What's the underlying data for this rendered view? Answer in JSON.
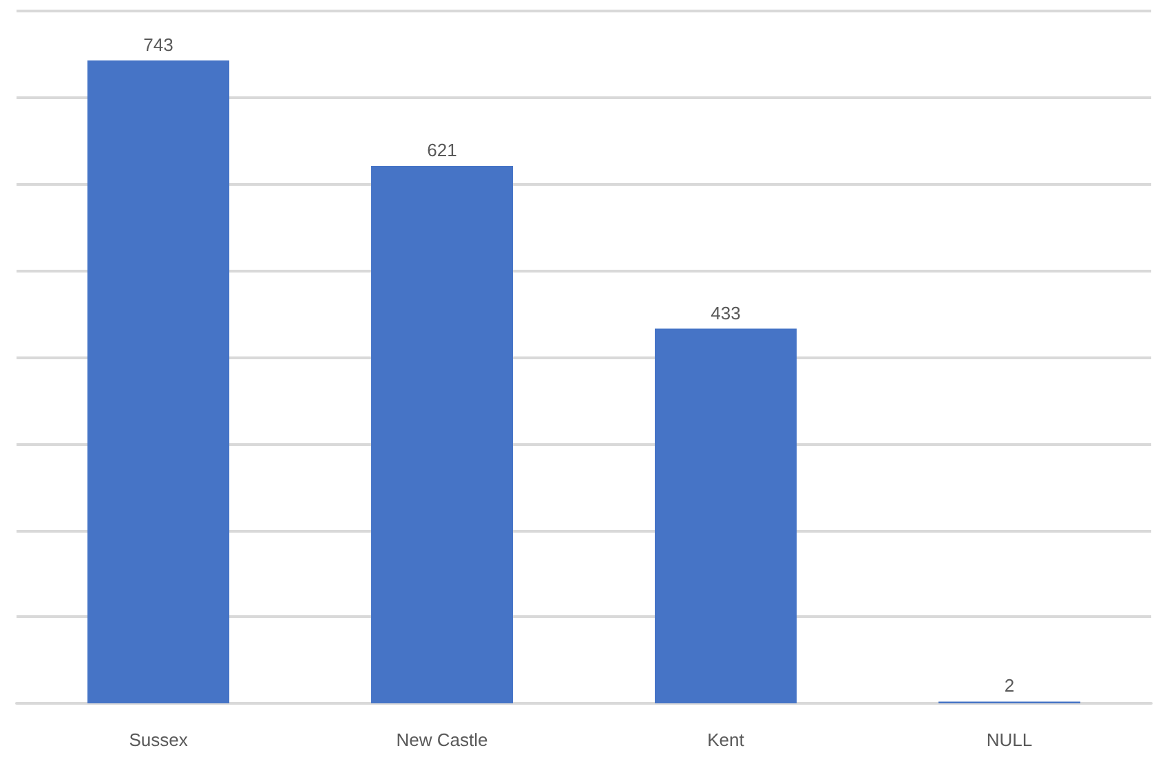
{
  "chart_data": {
    "type": "bar",
    "categories": [
      "Sussex",
      "New Castle",
      "Kent",
      "NULL"
    ],
    "values": [
      743,
      621,
      433,
      2
    ],
    "color": "#4674c6",
    "data_labels": true,
    "ylim": [
      0,
      800
    ],
    "yticks": [
      {
        "value": 0,
        "label": null
      },
      {
        "value": 100,
        "label": null
      },
      {
        "value": 200,
        "label": null
      },
      {
        "value": 300,
        "label": null
      },
      {
        "value": 400,
        "label": null
      },
      {
        "value": 500,
        "label": null
      },
      {
        "value": 600,
        "label": null
      },
      {
        "value": 700,
        "label": null
      },
      {
        "value": 800,
        "label": null
      }
    ],
    "tick_labels": "x",
    "grid": "y"
  }
}
